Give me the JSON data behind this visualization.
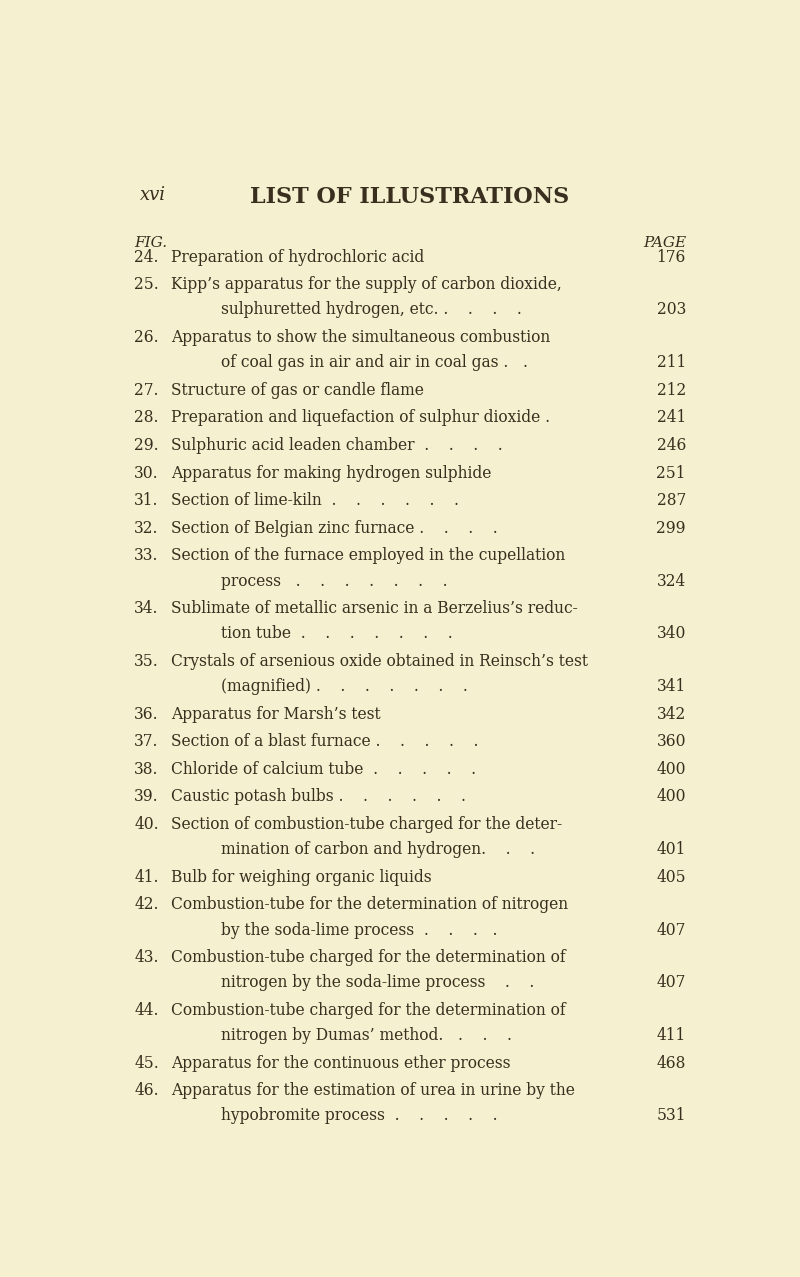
{
  "background_color": "#f5f0d0",
  "text_color": "#3a2e1e",
  "header_left": "xvi",
  "header_center": "LIST OF ILLUSTRATIONS",
  "col_left_label": "FIG.",
  "col_right_label": "PAGE",
  "entries": [
    {
      "num": "24.",
      "line1": "Preparation of hydrochloric acid",
      "line2": null,
      "page": "176"
    },
    {
      "num": "25.",
      "line1": "Kipp’s apparatus for the supply of carbon dioxide,",
      "line2": "sulphuretted hydrogen, etc. .    .    .    . ",
      "page": "203"
    },
    {
      "num": "26.",
      "line1": "Apparatus to show the simultaneous combustion",
      "line2": "of coal gas in air and air in coal gas .   . ",
      "page": "211"
    },
    {
      "num": "27.",
      "line1": "Structure of gas or candle flame",
      "line2": null,
      "page": "212"
    },
    {
      "num": "28.",
      "line1": "Preparation and liquefaction of sulphur dioxide .",
      "line2": null,
      "page": "241"
    },
    {
      "num": "29.",
      "line1": "Sulphuric acid leaden chamber  .    .    .    .",
      "line2": null,
      "page": "246"
    },
    {
      "num": "30.",
      "line1": "Apparatus for making hydrogen sulphide",
      "line2": null,
      "page": "251"
    },
    {
      "num": "31.",
      "line1": "Section of lime-kiln  .    .    .    .    .    .",
      "line2": null,
      "page": "287"
    },
    {
      "num": "32.",
      "line1": "Section of Belgian zinc furnace .    .    .    .",
      "line2": null,
      "page": "299"
    },
    {
      "num": "33.",
      "line1": "Section of the furnace employed in the cupellation",
      "line2": "process   .    .    .    .    .    .    .",
      "page": "324"
    },
    {
      "num": "34.",
      "line1": "Sublimate of metallic arsenic in a Berzelius’s reduc-",
      "line2": "tion tube  .    .    .    .    .    .    .",
      "page": "340"
    },
    {
      "num": "35.",
      "line1": "Crystals of arsenious oxide obtained in Reinsch’s test",
      "line2": "(magnified) .    .    .    .    .    .    .",
      "page": "341"
    },
    {
      "num": "36.",
      "line1": "Apparatus for Marsh’s test",
      "line2": null,
      "page": "342"
    },
    {
      "num": "37.",
      "line1": "Section of a blast furnace .    .    .    .    .",
      "line2": null,
      "page": "360"
    },
    {
      "num": "38.",
      "line1": "Chloride of calcium tube  .    .    .    .    .",
      "line2": null,
      "page": "400"
    },
    {
      "num": "39.",
      "line1": "Caustic potash bulbs .    .    .    .    .    .",
      "line2": null,
      "page": "400"
    },
    {
      "num": "40.",
      "line1": "Section of combustion-tube charged for the deter-",
      "line2": "mination of carbon and hydrogen.    .    .",
      "page": "401"
    },
    {
      "num": "41.",
      "line1": "Bulb for weighing organic liquids",
      "line2": null,
      "page": "405"
    },
    {
      "num": "42.",
      "line1": "Combustion-tube for the determination of nitrogen",
      "line2": "by the soda-lime process  .    .    .   .",
      "page": "407"
    },
    {
      "num": "43.",
      "line1": "Combustion-tube charged for the determination of",
      "line2": "nitrogen by the soda-lime process    .    .",
      "page": "407"
    },
    {
      "num": "44.",
      "line1": "Combustion-tube charged for the determination of",
      "line2": "nitrogen by Dumas’ method.   .    .    .",
      "page": "411"
    },
    {
      "num": "45.",
      "line1": "Apparatus for the continuous ether process",
      "line2": null,
      "page": "468"
    },
    {
      "num": "46.",
      "line1": "Apparatus for the estimation of urea in urine by the",
      "line2": "hypobromite process  .    .    .    .    .",
      "page": "531"
    }
  ],
  "font_size_header_title": 16,
  "font_size_header_side": 13,
  "font_size_col_label": 11,
  "font_size_entry": 11.2,
  "serif_font": "DejaVu Serif"
}
